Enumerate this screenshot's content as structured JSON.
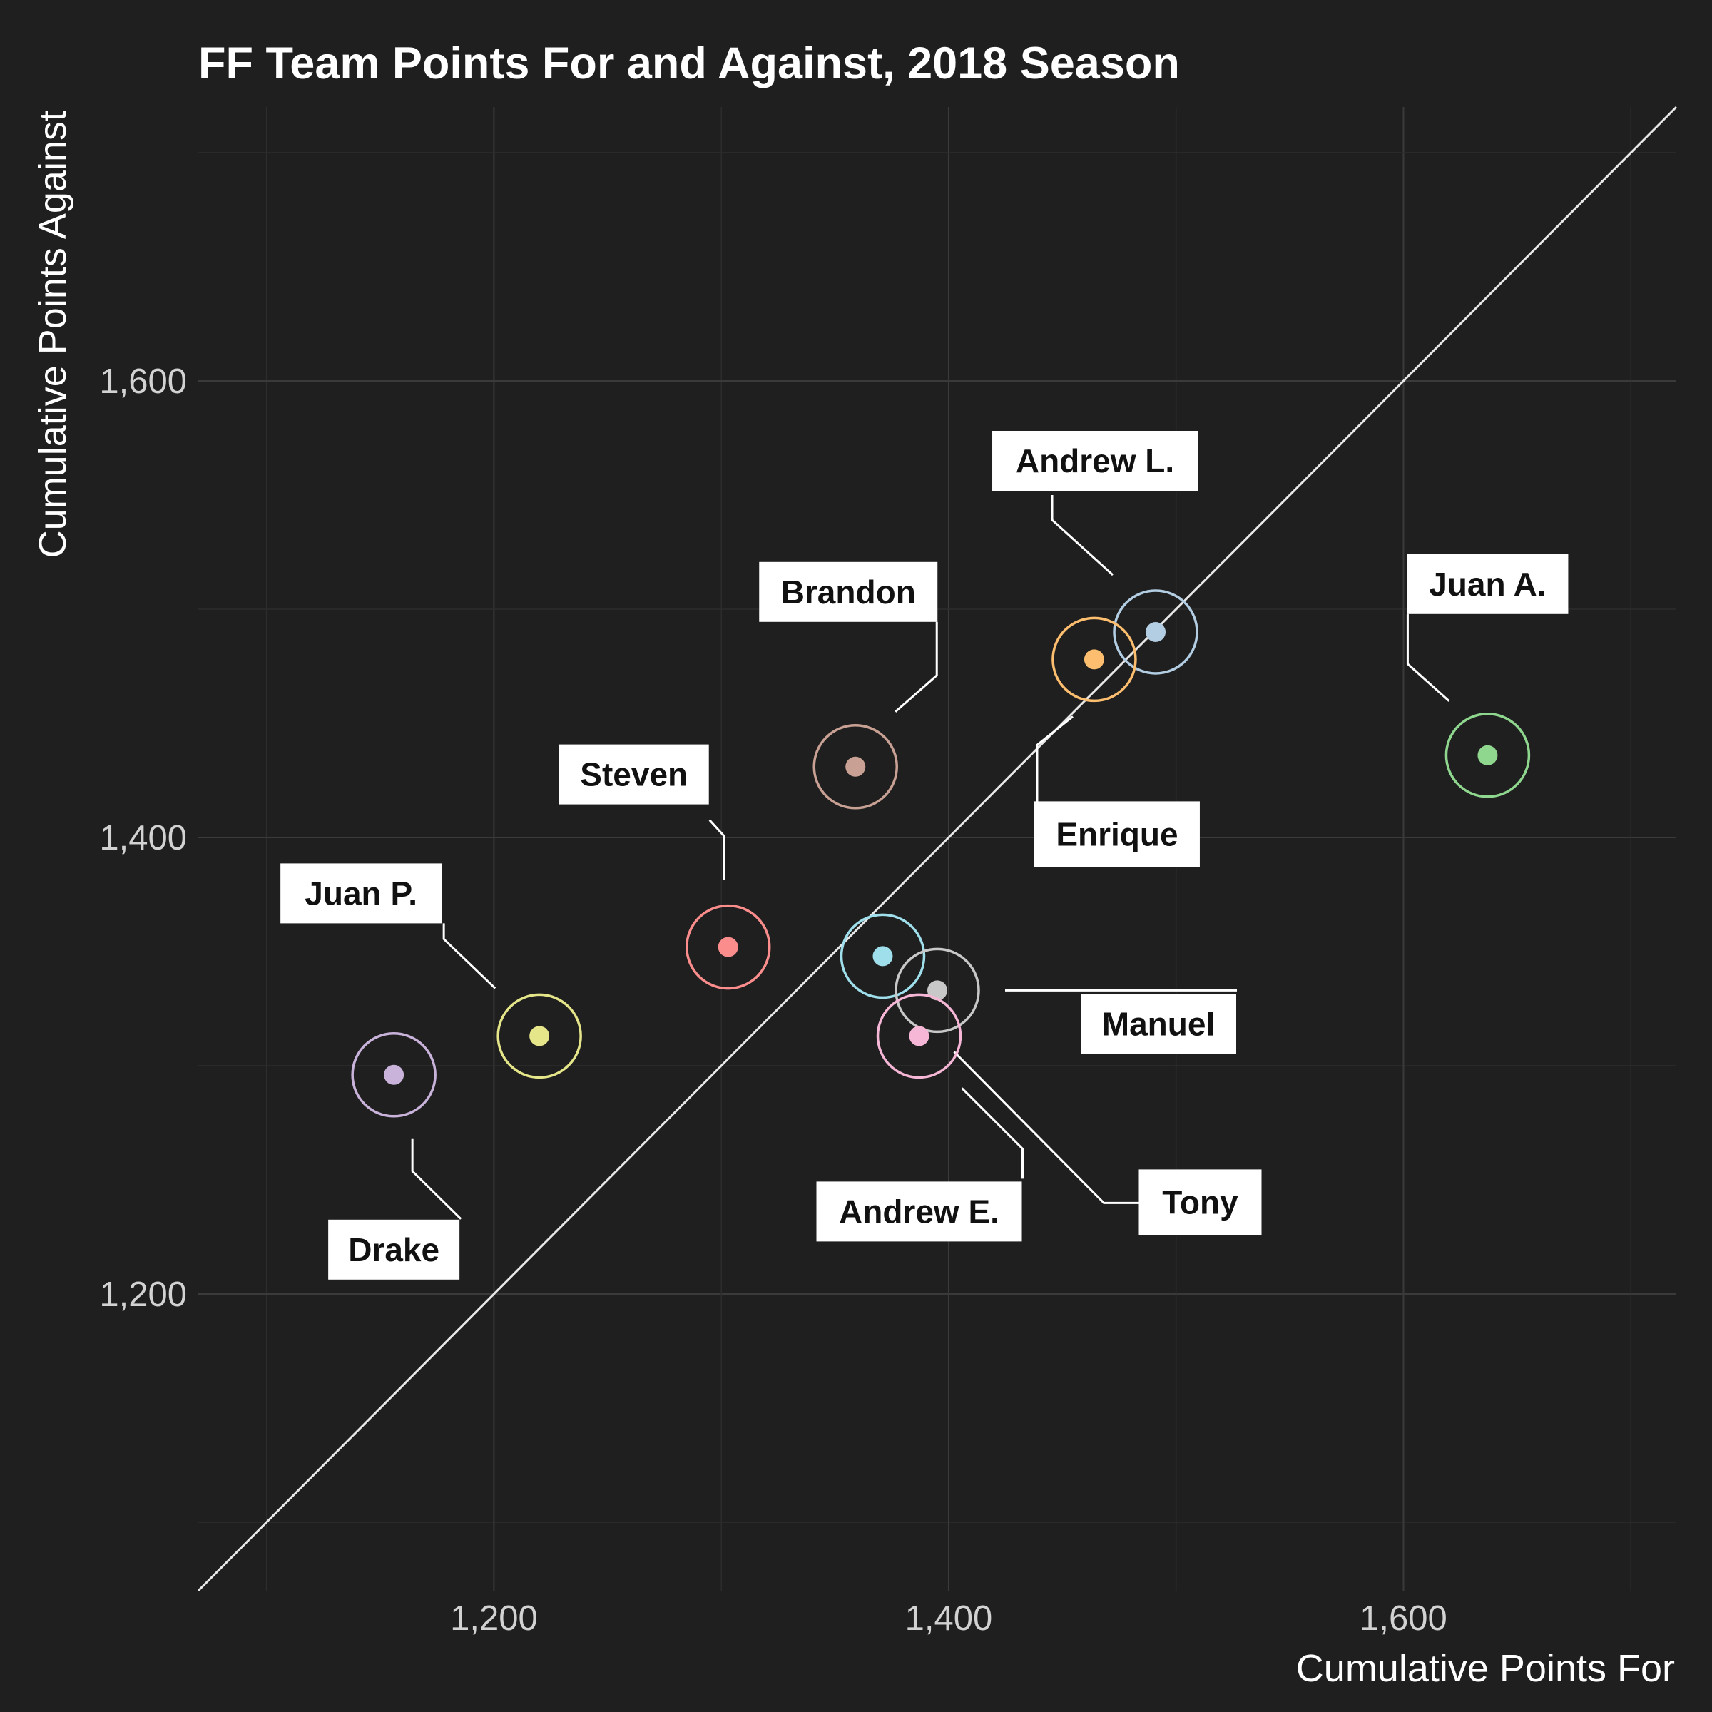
{
  "chart_data": {
    "type": "scatter",
    "title": "FF Team Points For and Against, 2018 Season",
    "xlabel": "Cumulative Points For",
    "ylabel": "Cumulative Points Against",
    "xlim": [
      1070,
      1720
    ],
    "ylim": [
      1070,
      1720
    ],
    "x_ticks": [
      1200,
      1400,
      1600
    ],
    "x_tick_labels": [
      "1,200",
      "1,400",
      "1,600"
    ],
    "y_ticks": [
      1200,
      1400,
      1600
    ],
    "y_tick_labels": [
      "1,200",
      "1,400",
      "1,600"
    ],
    "reference_line": "y = x",
    "grid": true,
    "legend": "none",
    "background": "#1f1f1f",
    "series": [
      {
        "label": "Andrew L.",
        "x": 1491,
        "y": 1490,
        "color": "#b3cde3"
      },
      {
        "label": "Enrique",
        "x": 1464,
        "y": 1478,
        "color": "#fdbf6f"
      },
      {
        "label": "Brandon",
        "x": 1359,
        "y": 1431,
        "color": "#c9a194"
      },
      {
        "label": "Juan A.",
        "x": 1637,
        "y": 1436,
        "color": "#8fd68f"
      },
      {
        "label": "Steven",
        "x": 1303,
        "y": 1352,
        "color": "#fb8d8d"
      },
      {
        "label": "Juan P.",
        "x": 1220,
        "y": 1313,
        "color": "#e5e58a"
      },
      {
        "label": "Drake",
        "x": 1156,
        "y": 1296,
        "color": "#c9b3db"
      },
      {
        "label": "Tony",
        "x": 1371,
        "y": 1348,
        "color": "#9fdfec"
      },
      {
        "label": "Manuel",
        "x": 1395,
        "y": 1333,
        "color": "#c8c8c8"
      },
      {
        "label": "Andrew E.",
        "x": 1387,
        "y": 1313,
        "color": "#f6b6d6"
      }
    ]
  }
}
